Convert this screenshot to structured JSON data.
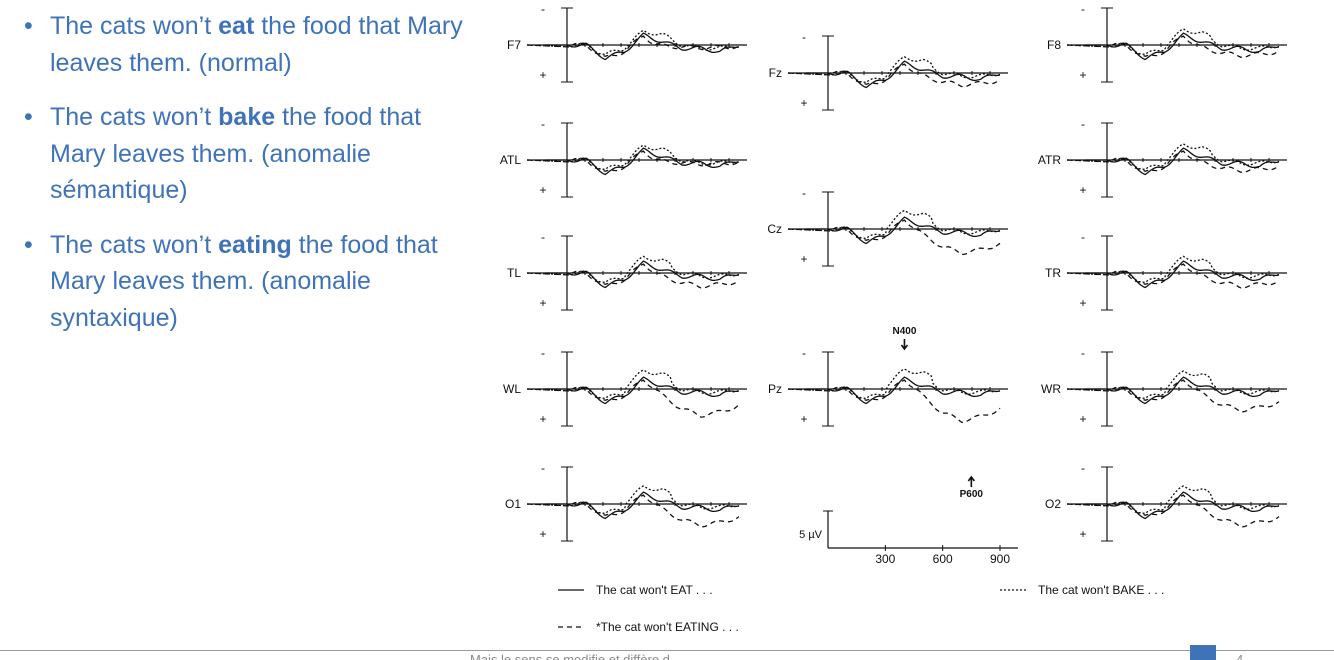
{
  "slide": {
    "bullets": [
      {
        "pre": "The cats won’t ",
        "bold": "eat",
        "post": " the food that Mary leaves them. (normal)"
      },
      {
        "pre": "The cats won’t ",
        "bold": "bake",
        "post": " the food that Mary leaves them. (anomalie sémantique)"
      },
      {
        "pre": "The cats won’t ",
        "bold": "eating",
        "post": " the food that Mary leaves them. (anomalie syntaxique)"
      }
    ],
    "bullet_symbol": "•",
    "footer_text": "Mais le sens se modifie et diffère d...",
    "page_number": "4"
  },
  "chart_data": {
    "type": "line",
    "title": "",
    "description_units": "ERP amplitude (µV) vs time (ms); negative plotted up",
    "polarity": {
      "negative_label": "-",
      "positive_label": "+"
    },
    "channels": [
      "F7",
      "Fz",
      "F8",
      "ATL",
      "ATR",
      "Cz",
      "TL",
      "TR",
      "WL",
      "Pz",
      "WR",
      "O1",
      "O2"
    ],
    "scale_bar": {
      "amplitude_label": "5 µV",
      "x_ticks": [
        "300",
        "600",
        "900"
      ]
    },
    "annotations": [
      {
        "label": "N400",
        "channel": "Pz",
        "time_ms": 400,
        "arrow": "down"
      },
      {
        "label": "P600",
        "channel": "Pz",
        "time_ms": 750,
        "arrow": "up"
      }
    ],
    "legend": [
      {
        "label": "The cat won't EAT . . .",
        "style": "solid",
        "symbol": "——"
      },
      {
        "label": "The cat won't BAKE . . .",
        "style": "dotted",
        "symbol": "·····"
      },
      {
        "label": "*The cat won't EATING . . .",
        "style": "dashed",
        "symbol": "– – –"
      }
    ],
    "series": [
      {
        "name": "The cat won't EAT",
        "x": [
          0,
          100,
          200,
          300,
          400,
          500,
          600,
          700,
          800,
          900
        ],
        "y": [
          0,
          0,
          4,
          2,
          -3,
          -1,
          1,
          1,
          2,
          0
        ]
      },
      {
        "name": "The cat won't BAKE",
        "x": [
          0,
          100,
          200,
          300,
          400,
          500,
          600,
          700,
          800,
          900
        ],
        "y": [
          0,
          0,
          3,
          1,
          -4,
          -3,
          0,
          1,
          1,
          0
        ]
      },
      {
        "name": "*The cat won't EATING",
        "x": [
          0,
          100,
          200,
          300,
          400,
          500,
          600,
          700,
          800,
          900
        ],
        "y": [
          0,
          0,
          4,
          2,
          -3,
          2,
          6,
          8,
          7,
          5
        ]
      }
    ]
  }
}
